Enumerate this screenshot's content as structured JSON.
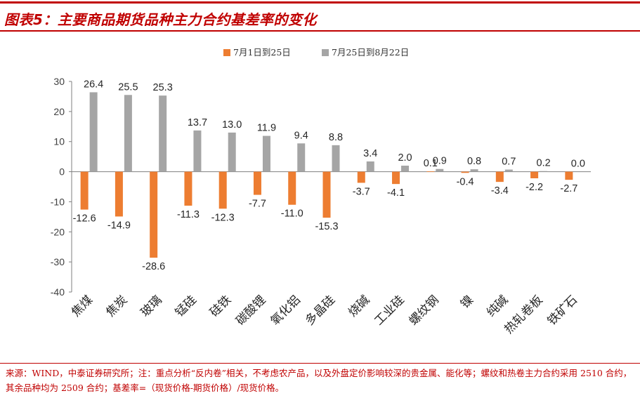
{
  "title": "图表5：主要商品期货品种主力合约基差率的变化",
  "source_note": "来源：WIND，中泰证券研究所；注：重点分析“反内卷”相关，不考虑农产品，以及外盘定价影响较深的贵金属、能化等；螺纹和热卷主力合约采用 2510 合约，其余品种均为 2509 合约；基差率=（现货价格-期货价格）/现货价格。",
  "colors": {
    "accent": "#c00000",
    "series1": "#ed7d31",
    "series2": "#a5a5a5"
  },
  "chart_data": {
    "type": "bar",
    "categories": [
      "焦煤",
      "焦炭",
      "玻璃",
      "锰硅",
      "硅铁",
      "碳酸锂",
      "氧化铝",
      "多晶硅",
      "烧碱",
      "工业硅",
      "螺纹钢",
      "镍",
      "纯碱",
      "热轧卷板",
      "铁矿石"
    ],
    "series": [
      {
        "name": "7月1日到25日",
        "values": [
          -12.6,
          -14.9,
          -28.6,
          -11.3,
          -12.3,
          -7.7,
          -11.0,
          -15.3,
          -3.7,
          -4.1,
          0.1,
          -0.4,
          -3.4,
          -2.2,
          -2.7
        ]
      },
      {
        "name": "7月25日到8月22日",
        "values": [
          26.4,
          25.5,
          25.3,
          13.7,
          13.0,
          11.9,
          9.4,
          8.8,
          3.4,
          2.0,
          0.9,
          0.8,
          0.7,
          0.2,
          0.0
        ]
      }
    ],
    "ylim": [
      -40,
      30
    ],
    "yticks": [
      30,
      20,
      10,
      0,
      -10,
      -20,
      -30,
      -40
    ],
    "legend_position": "top-center",
    "grid": false
  }
}
